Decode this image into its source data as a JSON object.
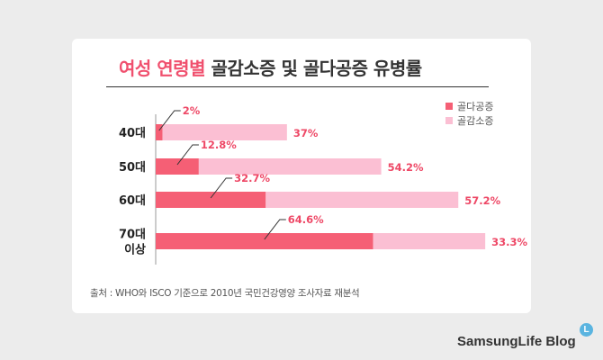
{
  "title": {
    "highlight": "여성 연령별",
    "rest": "골감소증 및 골다공증 유병률"
  },
  "source": "출처 : WHO와 ISCO 기준으로 2010년 국민건강영양 조사자료 재분석",
  "brand": {
    "name": "SamsungLife Blog",
    "badge": "L"
  },
  "colors": {
    "osteoporosis": "#f55f75",
    "osteopenia": "#fbbfd3",
    "label": "#ee4866",
    "axis": "#999999"
  },
  "chart_data": {
    "type": "bar",
    "orientation": "horizontal",
    "stacked": true,
    "categories": [
      "40대",
      "50대",
      "60대",
      "70대\n이상"
    ],
    "series": [
      {
        "name": "골다공증",
        "values": [
          2,
          12.8,
          32.7,
          64.6
        ],
        "labels": [
          "2%",
          "12.8%",
          "32.7%",
          "64.6%"
        ]
      },
      {
        "name": "골감소증",
        "values": [
          37,
          54.2,
          57.2,
          33.3
        ],
        "labels": [
          "37%",
          "54.2%",
          "57.2%",
          "33.3%"
        ]
      }
    ],
    "legend_position": "top-right",
    "xlim": [
      0,
      100
    ],
    "grid": false
  }
}
